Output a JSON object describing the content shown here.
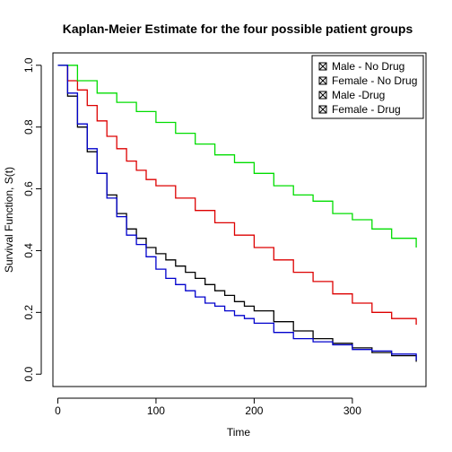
{
  "chart_data": {
    "type": "line",
    "title": "Kaplan-Meier Estimate for the four possible patient groups",
    "xlabel": "Time",
    "ylabel": "Survival Function, S(t)",
    "xlim": [
      -5,
      375
    ],
    "ylim": [
      -0.04,
      1.04
    ],
    "xticks": [
      "0",
      "100",
      "200",
      "300"
    ],
    "xtick_values": [
      0,
      100,
      200,
      300
    ],
    "yticks": [
      "0.0",
      "0.2",
      "0.4",
      "0.6",
      "0.8",
      "1.0"
    ],
    "ytick_values": [
      0,
      0.2,
      0.4,
      0.6,
      0.8,
      1.0
    ],
    "grid": false,
    "legend_position": "top-right",
    "series": [
      {
        "name": "Male - No Drug",
        "color": "#000000",
        "x": [
          0,
          10,
          20,
          30,
          40,
          50,
          60,
          70,
          80,
          90,
          100,
          110,
          120,
          130,
          140,
          150,
          160,
          170,
          180,
          190,
          200,
          220,
          240,
          260,
          280,
          300,
          320,
          340,
          365
        ],
        "y": [
          1.0,
          0.9,
          0.8,
          0.72,
          0.65,
          0.58,
          0.52,
          0.47,
          0.44,
          0.41,
          0.39,
          0.37,
          0.35,
          0.33,
          0.31,
          0.29,
          0.27,
          0.255,
          0.235,
          0.22,
          0.205,
          0.17,
          0.14,
          0.115,
          0.1,
          0.085,
          0.07,
          0.06,
          0.04
        ]
      },
      {
        "name": "Female - No Drug",
        "color": "#dd0000",
        "x": [
          0,
          10,
          20,
          30,
          40,
          50,
          60,
          70,
          80,
          90,
          100,
          120,
          140,
          160,
          180,
          200,
          220,
          240,
          260,
          280,
          300,
          320,
          340,
          365
        ],
        "y": [
          1.0,
          0.95,
          0.92,
          0.87,
          0.82,
          0.77,
          0.73,
          0.69,
          0.66,
          0.63,
          0.61,
          0.57,
          0.53,
          0.49,
          0.45,
          0.41,
          0.37,
          0.33,
          0.3,
          0.26,
          0.23,
          0.2,
          0.18,
          0.16
        ]
      },
      {
        "name": "Male -Drug",
        "color": "#00dd00",
        "x": [
          0,
          20,
          40,
          60,
          80,
          100,
          120,
          140,
          160,
          180,
          200,
          220,
          240,
          260,
          280,
          300,
          320,
          340,
          365
        ],
        "y": [
          1.0,
          0.95,
          0.91,
          0.88,
          0.85,
          0.815,
          0.78,
          0.745,
          0.71,
          0.685,
          0.65,
          0.61,
          0.58,
          0.56,
          0.52,
          0.5,
          0.47,
          0.44,
          0.41
        ]
      },
      {
        "name": "Female - Drug",
        "color": "#0000cc",
        "x": [
          0,
          10,
          20,
          30,
          40,
          50,
          60,
          70,
          80,
          90,
          100,
          110,
          120,
          130,
          140,
          150,
          160,
          170,
          180,
          190,
          200,
          220,
          240,
          260,
          280,
          300,
          320,
          340,
          365
        ],
        "y": [
          1.0,
          0.91,
          0.81,
          0.73,
          0.65,
          0.57,
          0.51,
          0.45,
          0.42,
          0.38,
          0.34,
          0.31,
          0.29,
          0.27,
          0.25,
          0.23,
          0.22,
          0.205,
          0.19,
          0.18,
          0.165,
          0.135,
          0.115,
          0.105,
          0.095,
          0.08,
          0.075,
          0.065,
          0.045
        ]
      }
    ]
  }
}
